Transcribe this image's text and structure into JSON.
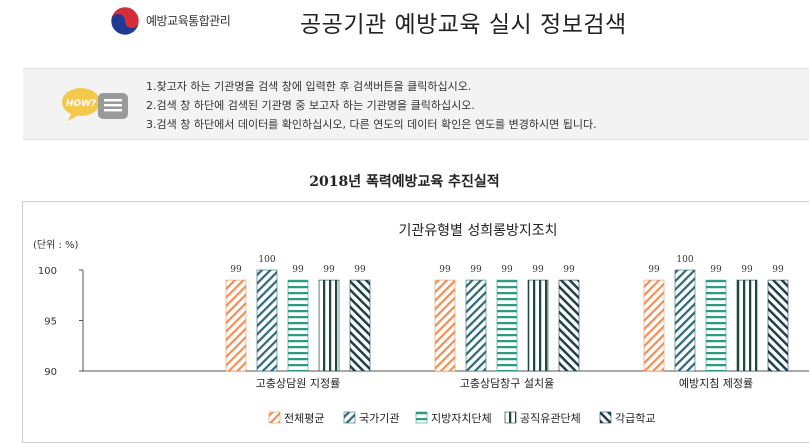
{
  "header": {
    "logo_text": "예방교육통합관리",
    "page_title": "공공기관 예방교육 실시 정보검색"
  },
  "help": {
    "icon_text": "HOW?",
    "lines": [
      "1.찾고자 하는 기관명을 검색 창에 입력한 후 검색버튼을 클릭하십시오.",
      "2.검색 창 하단에 검색된 기관명 중 보고자 하는 기관명을 클릭하십시오.",
      "3.검색 창 하단에서 데이터를 확인하십시오, 다른 연도의 데이터 확인은 연도를 변경하시면 됩니다."
    ]
  },
  "chart_heading": "2018년 폭력예방교육 추진실적",
  "chart_data": {
    "type": "bar",
    "title": "기관유형별 성희롱방지조치",
    "unit_label": "(단위 : %)",
    "categories": [
      "고충상담원 지정률",
      "고충상담창구 설치율",
      "예방지침 제정률"
    ],
    "ylim": [
      90,
      100
    ],
    "yticks": [
      90,
      95,
      100
    ],
    "grid": false,
    "legend_position": "bottom",
    "series": [
      {
        "name": "전체평균",
        "values": [
          99,
          99,
          99
        ],
        "color": "#f0915a",
        "pattern": "diag-light"
      },
      {
        "name": "국가기관",
        "values": [
          100,
          99,
          100
        ],
        "color": "#2f6a78",
        "pattern": "diag-dark"
      },
      {
        "name": "지방자치단체",
        "values": [
          99,
          99,
          99
        ],
        "color": "#2e9a82",
        "pattern": "horizontal"
      },
      {
        "name": "공직유관단체",
        "values": [
          99,
          99,
          99
        ],
        "color": "#1e4a3c",
        "pattern": "vertical"
      },
      {
        "name": "각급학교",
        "values": [
          99,
          99,
          99
        ],
        "color": "#20404c",
        "pattern": "diag-dense"
      }
    ]
  }
}
